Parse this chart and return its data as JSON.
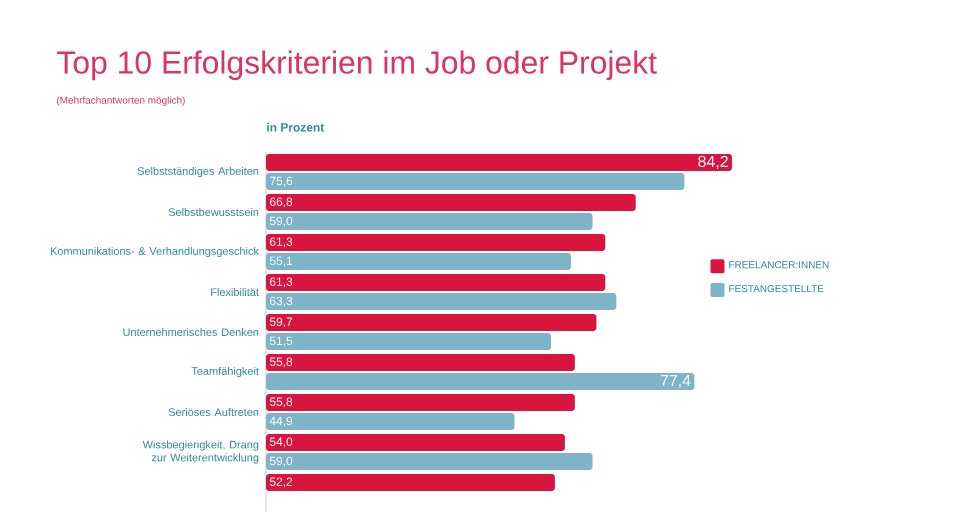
{
  "chart_data": {
    "type": "bar",
    "orientation": "horizontal",
    "title": "Top 10 Erfolgskriterien im Job oder Projekt",
    "subtitle": "(Mehrfachantworten möglich)",
    "xlabel": "in Prozent",
    "categories": [
      "Selbstständiges Arbeiten",
      "Selbstbewusstsein",
      "Kommunikations- & Verhandlungsgeschick",
      "Flexibilität",
      "Unternehmerisches Denken",
      "Teamfähigkeit",
      "Seriöses Auftreten",
      "Wissbegierigkeit, Drang zur Weiterentwicklung",
      null
    ],
    "series": [
      {
        "name": "FREELANCER:INNEN",
        "color": "#d7153f",
        "values": [
          84.2,
          66.8,
          61.3,
          61.3,
          59.7,
          55.8,
          55.8,
          54.0,
          52.2
        ],
        "value_labels": [
          "84,2",
          "66,8",
          "61,3",
          "61,3",
          "59,7",
          "55,8",
          "55,8",
          "54,0",
          "52,2"
        ]
      },
      {
        "name": "FESTANGESTELLTE",
        "color": "#7fb3c8",
        "values": [
          75.6,
          59.0,
          55.1,
          63.3,
          51.5,
          77.4,
          44.9,
          59.0,
          null
        ],
        "value_labels": [
          "75,6",
          "59,0",
          "55,1",
          "63,3",
          "51,5",
          "77,4",
          "44,9",
          "59,0",
          null
        ]
      }
    ],
    "legend": "right"
  }
}
